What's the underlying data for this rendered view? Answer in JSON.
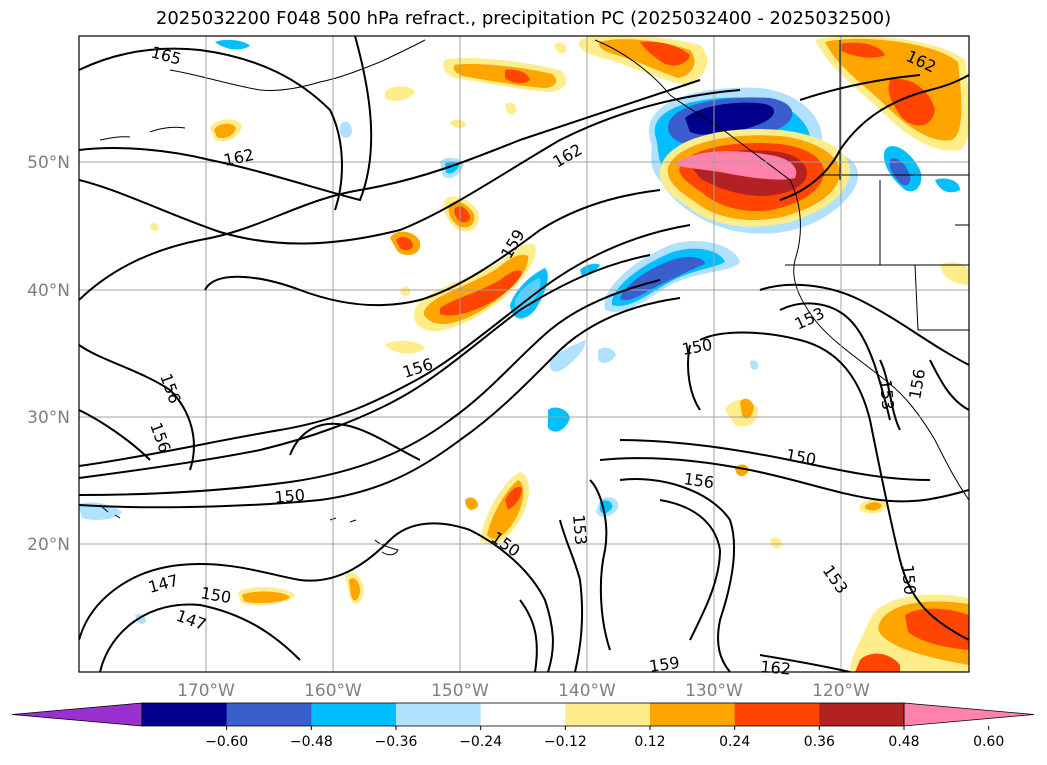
{
  "title": "2025032200 F048 500 hPa refract., precipitation PC (2025032400 - 2025032500)",
  "lat_labels": [
    "50°N",
    "40°N",
    "30°N",
    "20°N"
  ],
  "lon_labels": [
    "170°W",
    "160°W",
    "150°W",
    "140°W",
    "130°W",
    "120°W"
  ],
  "contour_labels": [
    "165",
    "162",
    "162",
    "159",
    "156",
    "156",
    "156",
    "150",
    "153",
    "150",
    "150",
    "156",
    "150",
    "147",
    "150",
    "147",
    "153",
    "153",
    "153",
    "156",
    "150",
    "159",
    "162",
    "162"
  ],
  "colorbar": {
    "ticks": [
      "−0.60",
      "−0.48",
      "−0.36",
      "−0.24",
      "−0.12",
      "0.12",
      "0.24",
      "0.36",
      "0.48",
      "0.60"
    ],
    "colors": [
      "#9b30d0",
      "#00008c",
      "#3a5fcd",
      "#00bfff",
      "#b0e2ff",
      "#ffffff",
      "#ffec8b",
      "#ffa500",
      "#ff4500",
      "#b22222",
      "#ff82ab"
    ]
  }
}
